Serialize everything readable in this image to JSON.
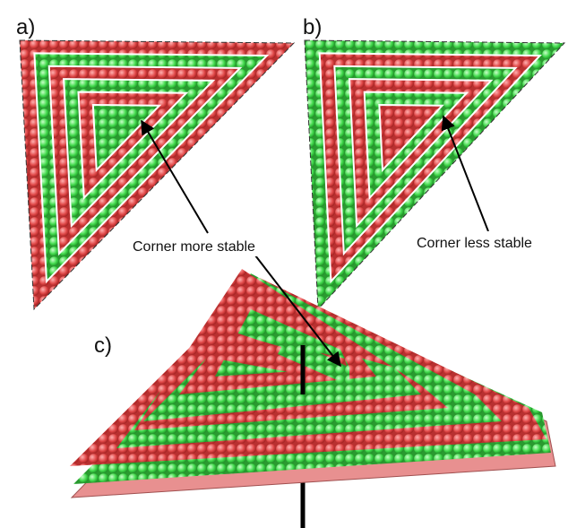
{
  "panels": [
    {
      "label": "a)",
      "annotation": "Corner more stable"
    },
    {
      "label": "b)",
      "annotation": "Corner less stable"
    },
    {
      "label": "c)"
    }
  ]
}
